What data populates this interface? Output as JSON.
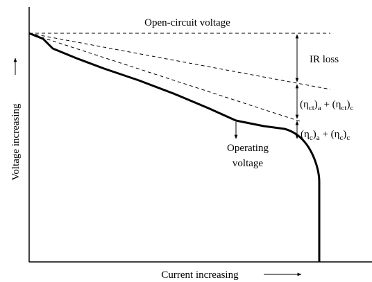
{
  "title": "Open-circuit voltage",
  "ir_loss": "IR loss",
  "activation_loss": [
    "(η",
    "ct",
    ")",
    "a",
    " + (η",
    "ct",
    ")",
    "c"
  ],
  "concentration_loss": [
    "(η",
    "c",
    ")",
    "a",
    " + (η",
    "c",
    ")",
    "c"
  ],
  "operating_voltage": [
    "Operating",
    "voltage"
  ],
  "y_axis_label": "Voltage increasing",
  "x_axis_label": "Current increasing"
}
